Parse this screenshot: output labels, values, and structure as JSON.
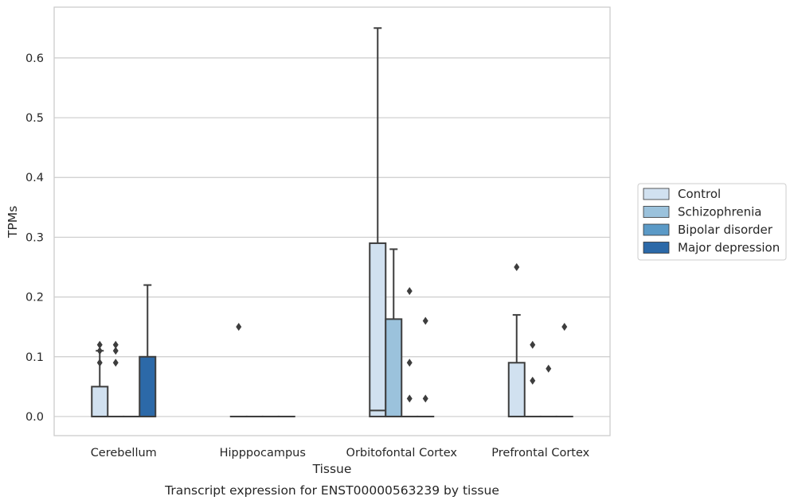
{
  "chart_data": {
    "type": "box",
    "title": "Transcript expression for ENST00000563239 by tissue",
    "xlabel": "Tissue",
    "ylabel": "TPMs",
    "ylim": [
      -0.032,
      0.685
    ],
    "yticks": [
      "0.0",
      "0.1",
      "0.2",
      "0.3",
      "0.4",
      "0.5",
      "0.6"
    ],
    "grid": true,
    "legend_position": "right",
    "categories": [
      "Cerebellum",
      "Hipppocampus",
      "Orbitofontal Cortex",
      "Prefrontal Cortex"
    ],
    "series": [
      {
        "name": "Control",
        "color": "#d1e1f0",
        "boxes": [
          {
            "q1": 0,
            "median": 0,
            "q3": 0.05,
            "whislo": 0,
            "whishi": 0.11,
            "fliers": [
              0.09,
              0.11,
              0.12
            ]
          },
          {
            "q1": 0,
            "median": 0,
            "q3": 0,
            "whislo": 0,
            "whishi": 0,
            "fliers": [
              0.15
            ]
          },
          {
            "q1": 0,
            "median": 0.01,
            "q3": 0.29,
            "whislo": 0,
            "whishi": 0.65,
            "fliers": []
          },
          {
            "q1": 0,
            "median": 0,
            "q3": 0.09,
            "whislo": 0,
            "whishi": 0.17,
            "fliers": [
              0.25
            ]
          }
        ]
      },
      {
        "name": "Schizophrenia",
        "color": "#9bc2dc",
        "boxes": [
          {
            "q1": 0,
            "median": 0,
            "q3": 0,
            "whislo": 0,
            "whishi": 0,
            "fliers": [
              0.09,
              0.11,
              0.12
            ]
          },
          {
            "q1": 0,
            "median": 0,
            "q3": 0,
            "whislo": 0,
            "whishi": 0,
            "fliers": []
          },
          {
            "q1": 0,
            "median": 0,
            "q3": 0.163,
            "whislo": 0,
            "whishi": 0.28,
            "fliers": []
          },
          {
            "q1": 0,
            "median": 0,
            "q3": 0,
            "whislo": 0,
            "whishi": 0,
            "fliers": [
              0.06,
              0.12
            ]
          }
        ]
      },
      {
        "name": "Bipolar disorder",
        "color": "#5b9ac7",
        "boxes": [
          {
            "q1": 0,
            "median": 0,
            "q3": 0,
            "whislo": 0,
            "whishi": 0,
            "fliers": []
          },
          {
            "q1": 0,
            "median": 0,
            "q3": 0,
            "whislo": 0,
            "whishi": 0,
            "fliers": []
          },
          {
            "q1": 0,
            "median": 0,
            "q3": 0,
            "whislo": 0,
            "whishi": 0,
            "fliers": [
              0.03,
              0.09,
              0.21
            ]
          },
          {
            "q1": 0,
            "median": 0,
            "q3": 0,
            "whislo": 0,
            "whishi": 0,
            "fliers": [
              0.08
            ]
          }
        ]
      },
      {
        "name": "Major depression",
        "color": "#2c69a8",
        "boxes": [
          {
            "q1": 0,
            "median": 0,
            "q3": 0.1,
            "whislo": 0,
            "whishi": 0.22,
            "fliers": []
          },
          {
            "q1": 0,
            "median": 0,
            "q3": 0,
            "whislo": 0,
            "whishi": 0,
            "fliers": []
          },
          {
            "q1": 0,
            "median": 0,
            "q3": 0,
            "whislo": 0,
            "whishi": 0,
            "fliers": [
              0.03,
              0.16
            ]
          },
          {
            "q1": 0,
            "median": 0,
            "q3": 0,
            "whislo": 0,
            "whishi": 0,
            "fliers": [
              0.15
            ]
          }
        ]
      }
    ]
  }
}
